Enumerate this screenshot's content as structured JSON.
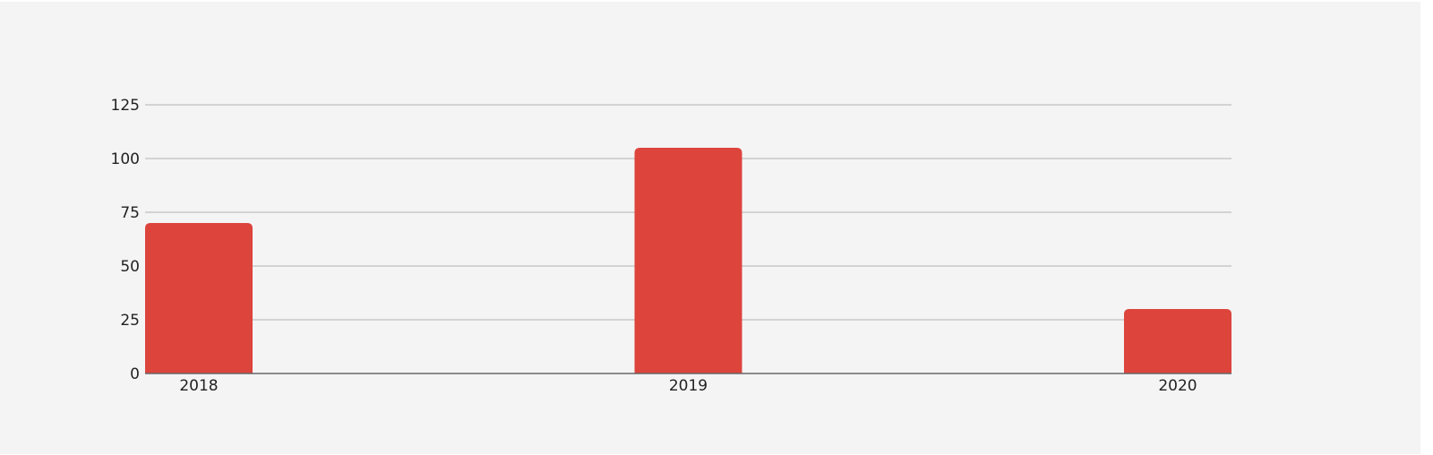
{
  "chart_data": {
    "type": "bar",
    "title": "",
    "xlabel": "",
    "ylabel": "",
    "categories": [
      "2018",
      "2019",
      "2020"
    ],
    "values": [
      70,
      105,
      30
    ],
    "ylim": [
      0,
      125
    ],
    "yticks": [
      0,
      25,
      50,
      75,
      100,
      125
    ],
    "grid": true,
    "legend": "none",
    "colors": {
      "bar": "#dc443c",
      "grid": "#c8c8c8",
      "axis": "#666666",
      "background": "#f4f4f4"
    }
  }
}
